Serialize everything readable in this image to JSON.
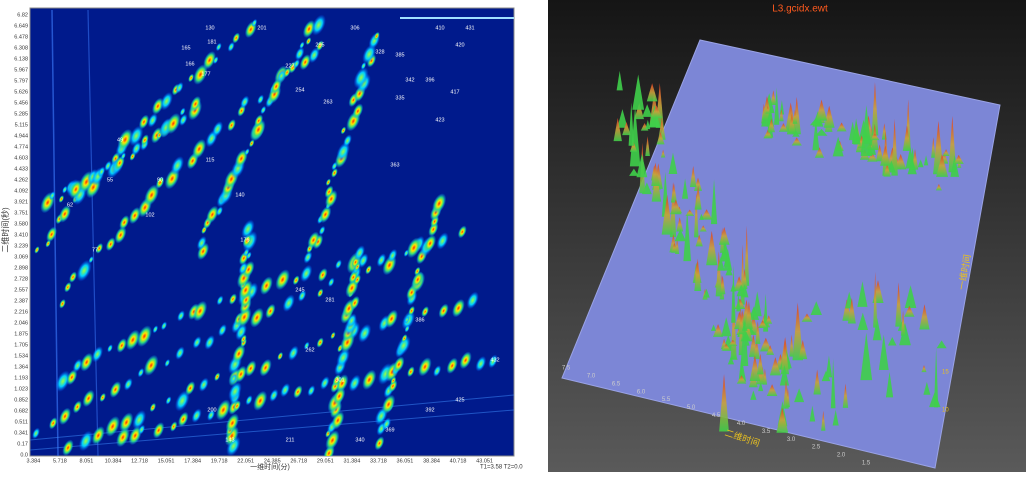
{
  "left_panel": {
    "y_axis_label": "二维时间(秒)",
    "x_axis_label": "一维时间(分)",
    "corner_note": "T1=3.58 T2=0.0",
    "y_ticks": [
      "6.82",
      "6.649",
      "6.478",
      "6.308",
      "6.138",
      "5.967",
      "5.797",
      "5.626",
      "5.456",
      "5.285",
      "5.115",
      "4.944",
      "4.774",
      "4.603",
      "4.433",
      "4.262",
      "4.092",
      "3.921",
      "3.751",
      "3.580",
      "3.410",
      "3.239",
      "3.069",
      "2.898",
      "2.728",
      "2.557",
      "2.387",
      "2.216",
      "2.046",
      "1.875",
      "1.705",
      "1.534",
      "1.364",
      "1.193",
      "1.023",
      "0.852",
      "0.682",
      "0.511",
      "0.341",
      "0.17",
      "0.0"
    ],
    "x_ticks": [
      "3.384",
      "5.718",
      "8.051",
      "10.384",
      "12.718",
      "15.051",
      "17.384",
      "19.718",
      "22.051",
      "24.385",
      "26.718",
      "29.051",
      "31.384",
      "33.718",
      "36.051",
      "38.384",
      "40.718",
      "43.051"
    ],
    "peak_labels": [
      "130",
      "165",
      "166",
      "177",
      "181",
      "201",
      "227",
      "254",
      "263",
      "295",
      "306",
      "328",
      "335",
      "342",
      "363",
      "385",
      "396",
      "410",
      "417",
      "420",
      "423",
      "431",
      "49",
      "55",
      "62",
      "77",
      "90",
      "102",
      "115",
      "140",
      "143",
      "176",
      "200",
      "211",
      "245",
      "262",
      "281",
      "301",
      "340",
      "369",
      "386",
      "392",
      "425",
      "432"
    ]
  },
  "right_panel": {
    "title": "L3.gcidx.ewt",
    "axis_label": "二维时间",
    "side_label": "一维时间",
    "axis_ticks": [
      "7.5",
      "7.0",
      "6.5",
      "6.0",
      "5.5",
      "5.0",
      "4.5",
      "4.0",
      "3.5",
      "3.0",
      "2.5",
      "2.0",
      "1.5"
    ],
    "side_ticks": [
      "15",
      "10"
    ]
  }
}
